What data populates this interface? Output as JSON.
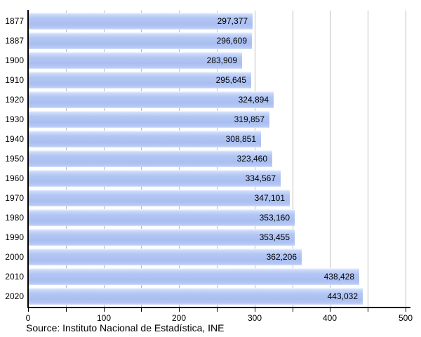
{
  "chart_data": {
    "type": "bar",
    "orientation": "horizontal",
    "title": "",
    "xlabel": "",
    "ylabel": "",
    "categories": [
      "1877",
      "1887",
      "1900",
      "1910",
      "1920",
      "1930",
      "1940",
      "1950",
      "1960",
      "1970",
      "1980",
      "1990",
      "2000",
      "2010",
      "2020"
    ],
    "values": [
      297377,
      296609,
      283909,
      295645,
      324894,
      319857,
      308851,
      323460,
      334567,
      347101,
      353160,
      353455,
      362206,
      438428,
      443032
    ],
    "value_labels": [
      "297,377",
      "296,609",
      "283,909",
      "295,645",
      "324,894",
      "319,857",
      "308,851",
      "323,460",
      "334,567",
      "347,101",
      "353,160",
      "353,455",
      "362,206",
      "438,428",
      "443,032"
    ],
    "xlim": [
      0,
      500000
    ],
    "x_tick_values": [
      0,
      100000,
      200000,
      300000,
      400000,
      500000
    ],
    "x_tick_labels": [
      "0",
      "100",
      "200",
      "300",
      "400",
      "500"
    ],
    "grid_step": 50000,
    "grid_on": true,
    "legend_position": "none",
    "source": "Source: Instituto Nacional de Estadística, INE",
    "colors": {
      "bar": "#aec3f2",
      "bar_highlight": "#e8effc",
      "gridline": "#bcbcbc",
      "axis": "#000000",
      "text": "#000000",
      "background": "#ffffff"
    }
  }
}
